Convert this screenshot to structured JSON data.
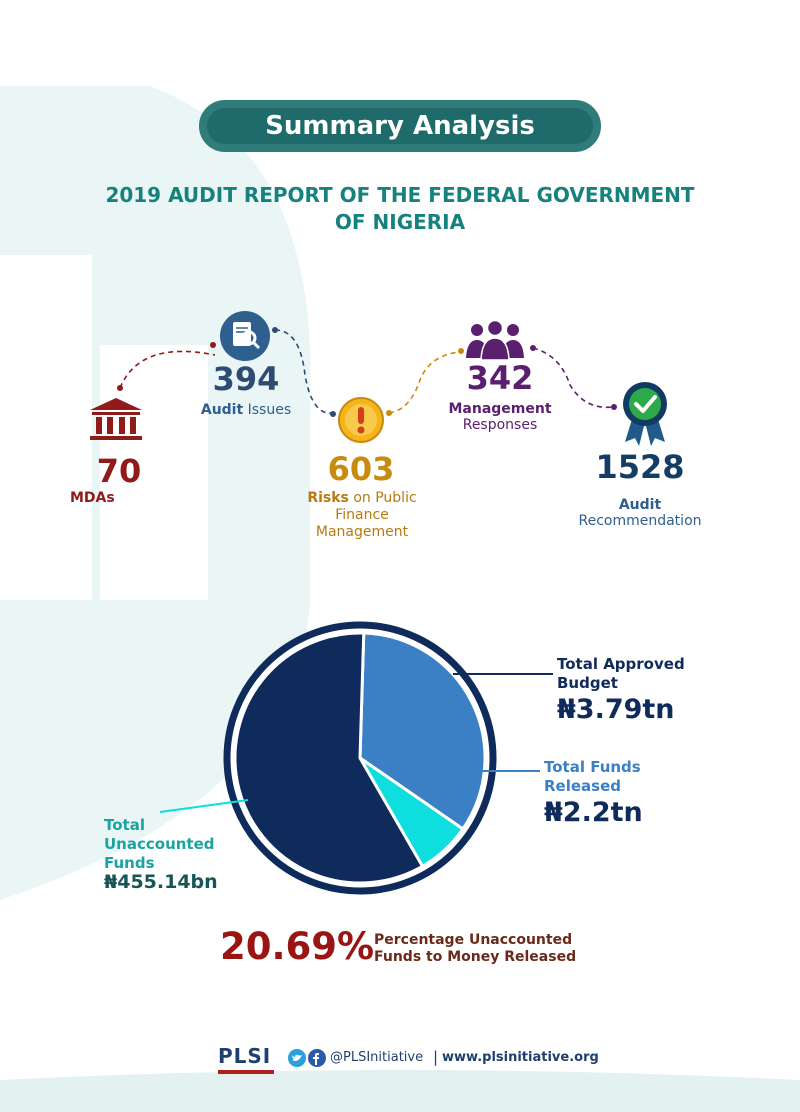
{
  "header": {
    "title": "Summary Analysis",
    "subtitle_line1": "2019 AUDIT REPORT OF THE FEDERAL GOVERNMENT",
    "subtitle_line2": "OF NIGERIA"
  },
  "stats": {
    "mdas": {
      "value": "70",
      "label": "MDAs",
      "icon": "bank-building-icon"
    },
    "audit_issues": {
      "value": "394",
      "label_bold": "Audit",
      "label_rest": " Issues",
      "icon": "audit-document-search-icon"
    },
    "risks": {
      "value": "603",
      "label_bold": "Risks",
      "label_rest": " on Public",
      "label_line2": "Finance",
      "label_line3": "Management",
      "icon": "warning-exclamation-icon"
    },
    "management": {
      "value": "342",
      "label_bold": "Management",
      "label_line2": "Responses",
      "icon": "people-group-icon"
    },
    "recommendation": {
      "value": "1528",
      "label_bold": "Audit",
      "label_line2": "Recommendation",
      "icon": "award-checkmark-icon"
    }
  },
  "chart_data": {
    "type": "pie",
    "slices": [
      {
        "name": "Total Funds Released",
        "value": 2.2,
        "unit": "tn",
        "color": "#3b7fc4"
      },
      {
        "name": "Total Unaccounted Funds",
        "value": 0.45514,
        "unit": "tn",
        "color": "#0fdede"
      },
      {
        "name": "Total Approved Budget",
        "value": 3.79,
        "unit": "tn",
        "color": "#0f2b5c"
      }
    ]
  },
  "legend": {
    "approved_label_1": "Total Approved",
    "approved_label_2": "Budget",
    "approved_value": "₦3.79tn",
    "released_label_1": "Total Funds",
    "released_label_2": "Released",
    "released_value": "₦2.2tn",
    "unaccounted_label_1": "Total",
    "unaccounted_label_2": "Unaccounted",
    "unaccounted_label_3": "Funds",
    "unaccounted_value": "₦455.14bn"
  },
  "percentage": {
    "value": "20.69%",
    "label_1": "Percentage Unaccounted",
    "label_2": "Funds to Money Released"
  },
  "footer": {
    "logo": "PLSI",
    "social_icons": [
      "twitter-icon",
      "facebook-icon"
    ],
    "handle": "@PLSInitiative",
    "separator": "|",
    "website": "www.plsinitiative.org"
  },
  "colors": {
    "teal": "#1f6b6b",
    "navy": "#0f2b5c",
    "blue": "#3b7fc4",
    "cyan": "#0fdede",
    "maroon": "#8f1b1b"
  }
}
